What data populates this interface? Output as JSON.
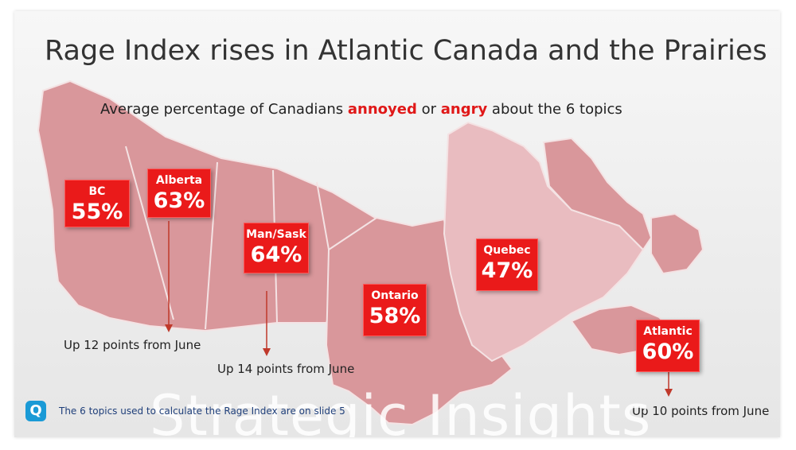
{
  "title": "Rage Index rises in Atlantic Canada and the Prairies",
  "subtitle": {
    "prefix": "Average percentage of Canadians ",
    "word1": "annoyed",
    "middle": " or ",
    "word2": "angry",
    "suffix": " about the 6 topics"
  },
  "regions": [
    {
      "name": "BC",
      "value": "55%"
    },
    {
      "name": "Alberta",
      "value": "63%"
    },
    {
      "name": "Man/Sask",
      "value": "64%"
    },
    {
      "name": "Ontario",
      "value": "58%"
    },
    {
      "name": "Quebec",
      "value": "47%"
    },
    {
      "name": "Atlantic",
      "value": "60%"
    }
  ],
  "notes": {
    "alberta": "Up 12 points from June",
    "mansask": "Up 14 points from June",
    "atlantic": "Up 10 points from June"
  },
  "footnote": "The 6 topics used to calculate the Rage Index are on slide 5",
  "logo_letter": "Q",
  "watermark": "Strategic Insights",
  "colors": {
    "region_dark": "#d9979b",
    "region_light": "#e9bcc0",
    "badge": "#ea1a1a",
    "highlight": "#e01818"
  }
}
